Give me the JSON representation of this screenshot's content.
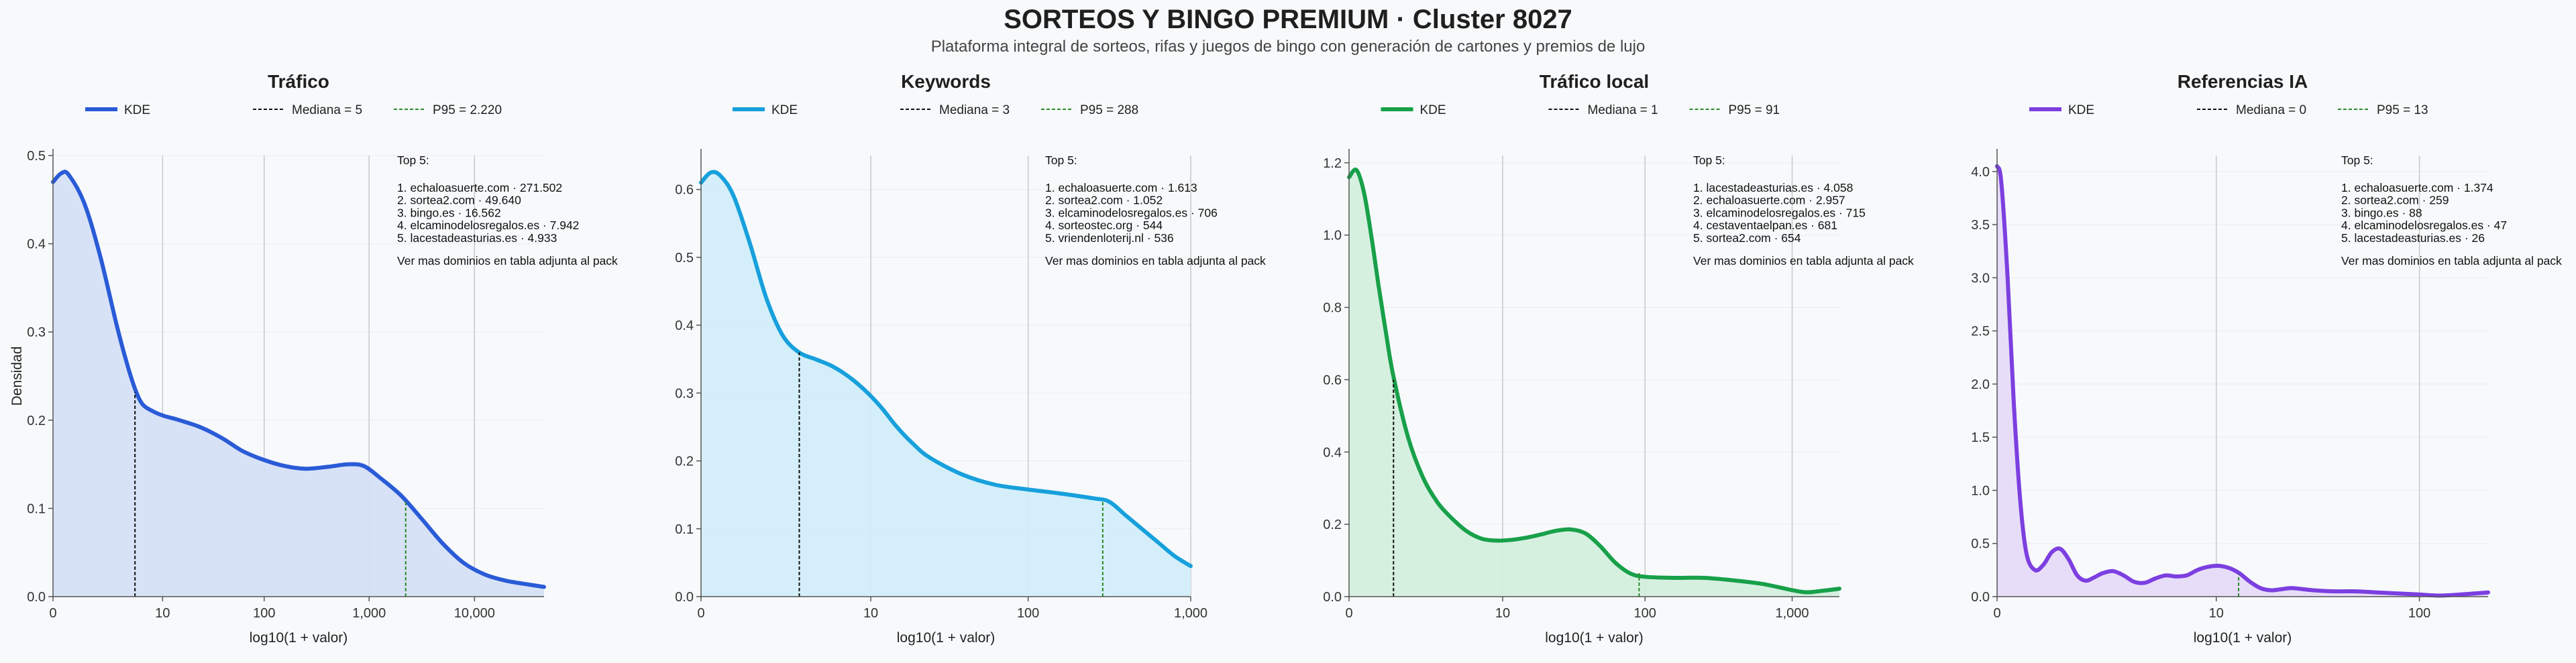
{
  "figure": {
    "title": "SORTEOS Y BINGO PREMIUM · Cluster 8027",
    "subtitle": "Plataforma integral de sorteos, rifas y juegos de bingo con generación de cartones y premios de lujo",
    "background": "#f7f9fb"
  },
  "chart_data": [
    {
      "type": "area",
      "title": "Tráfico",
      "color": "#2a5bd7",
      "fill": "#d6e0f7",
      "xlabel": "log10(1 + valor)",
      "ylabel": "Densidad",
      "x_scale": "log10(1 + valor)",
      "xlim": [
        0,
        4.66
      ],
      "ylim": [
        0,
        0.5
      ],
      "x_ticks": [
        {
          "value": 0,
          "label": "0"
        },
        {
          "value": 1.04,
          "label": "10"
        },
        {
          "value": 2.004,
          "label": "100"
        },
        {
          "value": 3.0,
          "label": "1,000"
        },
        {
          "value": 4.0,
          "label": "10,000"
        }
      ],
      "y_ticks": [
        0,
        0.1,
        0.2,
        0.3,
        0.4,
        0.5
      ],
      "y_tick_labels": [
        "0.0",
        "0.1",
        "0.2",
        "0.3",
        "0.4",
        "0.5"
      ],
      "series": [
        {
          "name": "KDE",
          "x": [
            0,
            0.08,
            0.15,
            0.3,
            0.45,
            0.6,
            0.7,
            0.78,
            0.85,
            0.95,
            1.05,
            1.2,
            1.4,
            1.6,
            1.8,
            2.0,
            2.2,
            2.4,
            2.6,
            2.8,
            2.95,
            3.1,
            3.3,
            3.5,
            3.7,
            3.9,
            4.1,
            4.3,
            4.5,
            4.66
          ],
          "y": [
            0.47,
            0.48,
            0.478,
            0.445,
            0.385,
            0.31,
            0.265,
            0.235,
            0.218,
            0.21,
            0.205,
            0.2,
            0.192,
            0.18,
            0.165,
            0.155,
            0.148,
            0.145,
            0.147,
            0.15,
            0.148,
            0.135,
            0.115,
            0.088,
            0.06,
            0.038,
            0.025,
            0.018,
            0.014,
            0.011
          ]
        }
      ],
      "legend": [
        {
          "label": "KDE",
          "style": "solid"
        },
        {
          "label": "Mediana = 5",
          "style": "dashed"
        },
        {
          "label": "P95 = 2.220",
          "style": "dashed-green"
        }
      ],
      "median": {
        "x": 0.778,
        "y": 0.232,
        "label": "Mediana = 5"
      },
      "p95": {
        "x": 3.347,
        "y": 0.108,
        "label": "P95 = 2.220"
      },
      "top": {
        "title": "Top 5:",
        "items": [
          "1. echaloasuerte.com · 271.502",
          "2. sortea2.com · 49.640",
          "3. bingo.es · 16.562",
          "4. elcaminodelosregalos.es · 7.942",
          "5. lacestadeasturias.es · 4.933"
        ],
        "footer": "Ver mas dominios en tabla adjunta al pack"
      }
    },
    {
      "type": "area",
      "title": "Keywords",
      "color": "#17a0dc",
      "fill": "#d2eef9",
      "xlabel": "log10(1 + valor)",
      "ylabel": "",
      "x_scale": "log10(1 + valor)",
      "xlim": [
        0,
        3.0
      ],
      "ylim": [
        0,
        0.65
      ],
      "x_ticks": [
        {
          "value": 0,
          "label": "0"
        },
        {
          "value": 1.04,
          "label": "10"
        },
        {
          "value": 2.004,
          "label": "100"
        },
        {
          "value": 3.0,
          "label": "1,000"
        }
      ],
      "y_ticks": [
        0,
        0.1,
        0.2,
        0.3,
        0.4,
        0.5,
        0.6
      ],
      "y_tick_labels": [
        "0.0",
        "0.1",
        "0.2",
        "0.3",
        "0.4",
        "0.5",
        "0.6"
      ],
      "series": [
        {
          "name": "KDE",
          "x": [
            0,
            0.06,
            0.12,
            0.2,
            0.3,
            0.4,
            0.5,
            0.6,
            0.7,
            0.8,
            0.9,
            1.0,
            1.1,
            1.2,
            1.3,
            1.4,
            1.6,
            1.8,
            2.0,
            2.2,
            2.4,
            2.5,
            2.6,
            2.7,
            2.8,
            2.9,
            3.0
          ],
          "y": [
            0.61,
            0.625,
            0.62,
            0.59,
            0.52,
            0.44,
            0.385,
            0.36,
            0.35,
            0.34,
            0.325,
            0.305,
            0.28,
            0.25,
            0.225,
            0.205,
            0.18,
            0.165,
            0.158,
            0.152,
            0.145,
            0.14,
            0.12,
            0.1,
            0.08,
            0.06,
            0.045
          ]
        }
      ],
      "legend": [
        {
          "label": "KDE",
          "style": "solid"
        },
        {
          "label": "Mediana = 3",
          "style": "dashed"
        },
        {
          "label": "P95 = 288",
          "style": "dashed-green"
        }
      ],
      "median": {
        "x": 0.602,
        "y": 0.36,
        "label": "Mediana = 3"
      },
      "p95": {
        "x": 2.461,
        "y": 0.142,
        "label": "P95 = 288"
      },
      "top": {
        "title": "Top 5:",
        "items": [
          "1. echaloasuerte.com · 1.613",
          "2. sortea2.com · 1.052",
          "3. elcaminodelosregalos.es · 706",
          "4. sorteostec.org · 544",
          "5. vriendenloterij.nl · 536"
        ],
        "footer": "Ver mas dominios en tabla adjunta al pack"
      }
    },
    {
      "type": "area",
      "title": "Tráfico local",
      "color": "#18a04a",
      "fill": "#d4efde",
      "xlabel": "log10(1 + valor)",
      "ylabel": "",
      "x_scale": "log10(1 + valor)",
      "xlim": [
        0,
        3.32
      ],
      "ylim": [
        0,
        1.22
      ],
      "x_ticks": [
        {
          "value": 0,
          "label": "0"
        },
        {
          "value": 1.04,
          "label": "10"
        },
        {
          "value": 2.004,
          "label": "100"
        },
        {
          "value": 3.0,
          "label": "1,000"
        }
      ],
      "y_ticks": [
        0,
        0.2,
        0.4,
        0.6,
        0.8,
        1.0,
        1.2
      ],
      "y_tick_labels": [
        "0.0",
        "0.2",
        "0.4",
        "0.6",
        "0.8",
        "1.0",
        "1.2"
      ],
      "series": [
        {
          "name": "KDE",
          "x": [
            0,
            0.05,
            0.1,
            0.15,
            0.2,
            0.25,
            0.3,
            0.4,
            0.5,
            0.6,
            0.7,
            0.8,
            0.9,
            1.0,
            1.1,
            1.2,
            1.3,
            1.4,
            1.5,
            1.6,
            1.7,
            1.8,
            1.9,
            2.0,
            2.2,
            2.4,
            2.6,
            2.8,
            3.0,
            3.1,
            3.2,
            3.32
          ],
          "y": [
            1.16,
            1.18,
            1.12,
            1.0,
            0.86,
            0.73,
            0.61,
            0.44,
            0.33,
            0.26,
            0.215,
            0.18,
            0.16,
            0.155,
            0.157,
            0.163,
            0.172,
            0.182,
            0.186,
            0.175,
            0.14,
            0.095,
            0.065,
            0.055,
            0.052,
            0.052,
            0.045,
            0.035,
            0.018,
            0.012,
            0.016,
            0.022
          ]
        }
      ],
      "legend": [
        {
          "label": "KDE",
          "style": "solid"
        },
        {
          "label": "Mediana = 1",
          "style": "dashed"
        },
        {
          "label": "P95 = 91",
          "style": "dashed-green"
        }
      ],
      "median": {
        "x": 0.301,
        "y": 0.6,
        "label": "Mediana = 1"
      },
      "p95": {
        "x": 1.964,
        "y": 0.065,
        "label": "P95 = 91"
      },
      "top": {
        "title": "Top 5:",
        "items": [
          "1. lacestadeasturias.es · 4.058",
          "2. echaloasuerte.com · 2.957",
          "3. elcaminodelosregalos.es · 715",
          "4. cestaventaelpan.es · 681",
          "5. sortea2.com · 654"
        ],
        "footer": "Ver mas dominios en tabla adjunta al pack"
      }
    },
    {
      "type": "area",
      "title": "Referencias IA",
      "color": "#7c3fe0",
      "fill": "#e6dbf8",
      "xlabel": "log10(1 + valor)",
      "ylabel": "",
      "x_scale": "log10(1 + valor)",
      "xlim": [
        0,
        2.33
      ],
      "ylim": [
        0,
        4.15
      ],
      "x_ticks": [
        {
          "value": 0,
          "label": "0"
        },
        {
          "value": 1.04,
          "label": "10"
        },
        {
          "value": 2.004,
          "label": "100"
        }
      ],
      "y_ticks": [
        0,
        0.5,
        1.0,
        1.5,
        2.0,
        2.5,
        3.0,
        3.5,
        4.0
      ],
      "y_tick_labels": [
        "0.0",
        "0.5",
        "1.0",
        "1.5",
        "2.0",
        "2.5",
        "3.0",
        "3.5",
        "4.0"
      ],
      "series": [
        {
          "name": "KDE",
          "x": [
            0,
            0.02,
            0.05,
            0.08,
            0.11,
            0.14,
            0.18,
            0.22,
            0.26,
            0.3,
            0.34,
            0.38,
            0.42,
            0.46,
            0.5,
            0.55,
            0.6,
            0.65,
            0.7,
            0.75,
            0.8,
            0.85,
            0.9,
            0.95,
            1.0,
            1.05,
            1.1,
            1.15,
            1.2,
            1.25,
            1.3,
            1.35,
            1.4,
            1.5,
            1.6,
            1.7,
            1.8,
            1.9,
            2.0,
            2.1,
            2.2,
            2.33
          ],
          "y": [
            4.05,
            3.9,
            3.0,
            1.8,
            0.9,
            0.4,
            0.25,
            0.3,
            0.42,
            0.45,
            0.35,
            0.2,
            0.15,
            0.18,
            0.22,
            0.24,
            0.2,
            0.14,
            0.13,
            0.17,
            0.2,
            0.19,
            0.2,
            0.25,
            0.28,
            0.29,
            0.27,
            0.22,
            0.14,
            0.08,
            0.06,
            0.07,
            0.08,
            0.06,
            0.05,
            0.05,
            0.04,
            0.03,
            0.02,
            0.01,
            0.02,
            0.04
          ]
        }
      ],
      "legend": [
        {
          "label": "KDE",
          "style": "solid"
        },
        {
          "label": "Mediana = 0",
          "style": "dashed"
        },
        {
          "label": "P95 = 13",
          "style": "dashed-green"
        }
      ],
      "median": {
        "x": 0,
        "y": 4.05,
        "label": "Mediana = 0"
      },
      "p95": {
        "x": 1.146,
        "y": 0.21,
        "label": "P95 = 13"
      },
      "top": {
        "title": "Top 5:",
        "items": [
          "1. echaloasuerte.com · 1.374",
          "2. sortea2.com · 259",
          "3. bingo.es · 88",
          "4. elcaminodelosregalos.es · 47",
          "5. lacestadeasturias.es · 26"
        ],
        "footer": "Ver mas dominios en tabla adjunta al pack"
      }
    }
  ]
}
